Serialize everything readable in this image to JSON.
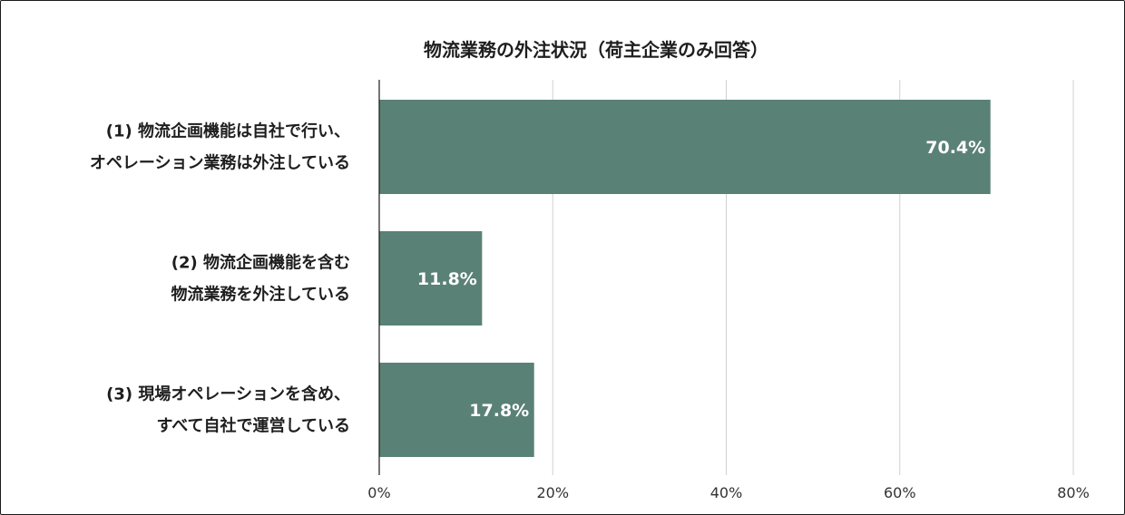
{
  "chart_data": {
    "type": "bar",
    "orientation": "horizontal",
    "title": "物流業務の外注状況（荷主企業のみ回答）",
    "categories": [
      [
        "(1) 物流企画機能は自社で行い、",
        "オペレーション業務は外注している"
      ],
      [
        "(2) 物流企画機能を含む",
        "物流業務を外注している"
      ],
      [
        "(3) 現場オペレーションを含め、",
        "すべて自社で運営している"
      ]
    ],
    "values": [
      70.4,
      11.8,
      17.8
    ],
    "data_labels": [
      "70.4%",
      "11.8%",
      "17.8%"
    ],
    "xlim": [
      0,
      80
    ],
    "ticks": [
      0,
      20,
      40,
      60,
      80
    ],
    "tick_labels": [
      "0%",
      "20%",
      "40%",
      "60%",
      "80%"
    ],
    "grid": true,
    "legend": "none",
    "bar_color": "#5a8176",
    "grid_color": "#d0d0d0",
    "axis_color": "#1a1a1a"
  }
}
